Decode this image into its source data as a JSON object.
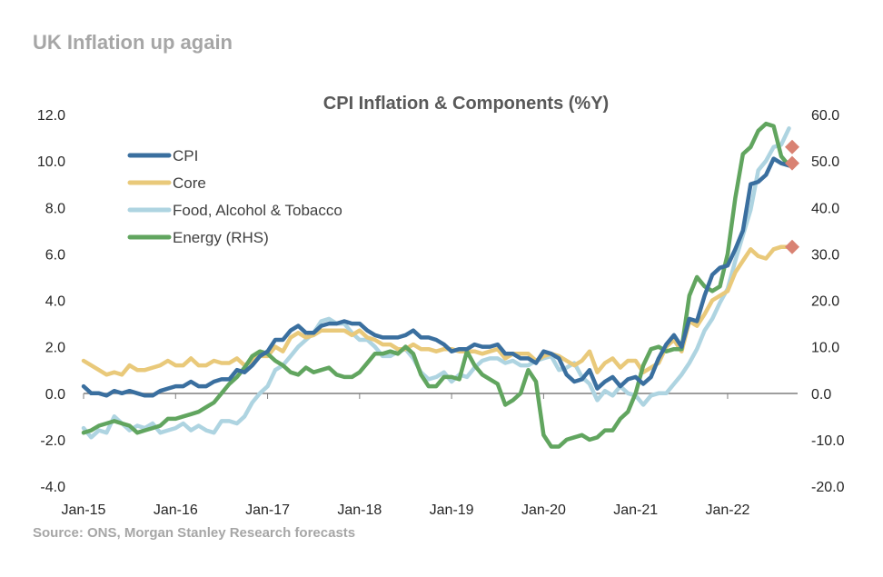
{
  "page": {
    "title": "UK Inflation up again",
    "source": "Source: ONS, Morgan Stanley Research forecasts"
  },
  "chart_data": {
    "type": "line",
    "title": "CPI Inflation & Components (%Y)",
    "x_start": "2015-01",
    "frequency": "monthly",
    "x_ticks": [
      "Jan-15",
      "Jan-16",
      "Jan-17",
      "Jan-18",
      "Jan-19",
      "Jan-20",
      "Jan-21",
      "Jan-22"
    ],
    "y_left": {
      "range": [
        -4,
        12
      ],
      "ticks": [
        "12.0",
        "10.0",
        "8.0",
        "6.0",
        "4.0",
        "2.0",
        "0.0",
        "-2.0",
        "-4.0"
      ]
    },
    "y_right": {
      "range": [
        -20,
        60
      ],
      "ticks": [
        "60.0",
        "50.0",
        "40.0",
        "30.0",
        "20.0",
        "10.0",
        "0.0",
        "-10.0",
        "-20.0"
      ]
    },
    "grid": false,
    "legend": "top-left",
    "series": [
      {
        "name": "CPI",
        "axis": "left",
        "color": "#3a6f9f",
        "values": [
          0.3,
          0.0,
          0.0,
          -0.1,
          0.1,
          0.0,
          0.1,
          0.0,
          -0.1,
          -0.1,
          0.1,
          0.2,
          0.3,
          0.3,
          0.5,
          0.3,
          0.3,
          0.5,
          0.6,
          0.6,
          1.0,
          0.9,
          1.2,
          1.6,
          1.8,
          2.3,
          2.3,
          2.7,
          2.9,
          2.6,
          2.6,
          2.9,
          3.0,
          3.0,
          3.1,
          3.0,
          3.0,
          2.7,
          2.5,
          2.4,
          2.4,
          2.4,
          2.5,
          2.7,
          2.4,
          2.4,
          2.3,
          2.1,
          1.8,
          1.9,
          1.9,
          2.1,
          2.0,
          2.0,
          2.1,
          1.7,
          1.7,
          1.5,
          1.5,
          1.3,
          1.8,
          1.7,
          1.5,
          0.8,
          0.5,
          0.6,
          1.0,
          0.2,
          0.5,
          0.7,
          0.3,
          0.6,
          0.7,
          0.4,
          0.7,
          1.5,
          2.1,
          2.5,
          2.0,
          3.2,
          3.1,
          4.2,
          5.1,
          5.4,
          5.5,
          6.2,
          7.0,
          9.0,
          9.1,
          9.4,
          10.1,
          9.9,
          9.8
        ]
      },
      {
        "name": "Core",
        "axis": "left",
        "color": "#e9c97a",
        "values": [
          1.4,
          1.2,
          1.0,
          0.8,
          0.9,
          0.8,
          1.2,
          1.0,
          1.0,
          1.1,
          1.2,
          1.4,
          1.2,
          1.2,
          1.5,
          1.2,
          1.2,
          1.4,
          1.3,
          1.3,
          1.5,
          1.2,
          1.4,
          1.6,
          1.6,
          2.0,
          1.8,
          2.4,
          2.6,
          2.4,
          2.5,
          2.7,
          2.7,
          2.7,
          2.7,
          2.5,
          2.7,
          2.4,
          2.3,
          2.1,
          2.1,
          1.9,
          1.9,
          2.1,
          1.9,
          1.9,
          1.8,
          1.9,
          1.9,
          1.8,
          1.8,
          1.8,
          1.7,
          1.8,
          1.9,
          1.5,
          1.7,
          1.7,
          1.7,
          1.4,
          1.6,
          1.7,
          1.6,
          1.4,
          1.2,
          1.4,
          1.8,
          0.9,
          1.3,
          1.5,
          1.1,
          1.4,
          1.4,
          0.9,
          1.1,
          1.3,
          2.0,
          2.3,
          1.8,
          3.1,
          2.9,
          3.4,
          4.0,
          4.2,
          4.4,
          5.2,
          5.7,
          6.2,
          5.9,
          5.8,
          6.2,
          6.3,
          6.3
        ]
      },
      {
        "name": "Food, Alcohol & Tobacco",
        "axis": "left",
        "color": "#aed4e1",
        "values": [
          -1.5,
          -1.9,
          -1.6,
          -1.7,
          -1.0,
          -1.3,
          -1.6,
          -1.4,
          -1.5,
          -1.3,
          -1.7,
          -1.6,
          -1.5,
          -1.3,
          -1.6,
          -1.4,
          -1.6,
          -1.7,
          -1.2,
          -1.2,
          -1.3,
          -1.0,
          -0.4,
          0.0,
          0.3,
          1.0,
          1.2,
          1.6,
          2.0,
          2.3,
          2.6,
          3.1,
          3.2,
          3.0,
          3.0,
          2.6,
          2.3,
          2.3,
          2.0,
          1.6,
          1.6,
          1.8,
          1.9,
          1.5,
          0.9,
          0.6,
          0.7,
          0.9,
          0.5,
          0.8,
          0.7,
          1.1,
          1.4,
          1.5,
          1.5,
          1.3,
          1.4,
          1.2,
          1.2,
          1.4,
          1.5,
          1.6,
          1.0,
          1.1,
          1.3,
          0.7,
          0.4,
          -0.3,
          0.1,
          -0.1,
          0.3,
          0.0,
          -0.1,
          -0.5,
          -0.1,
          0.0,
          0.0,
          0.4,
          0.8,
          1.3,
          1.9,
          2.7,
          3.2,
          3.9,
          4.5,
          5.7,
          6.8,
          7.9,
          9.6,
          10.0,
          10.6,
          10.7,
          11.4
        ]
      },
      {
        "name": "Energy (RHS)",
        "axis": "right",
        "color": "#61a55f",
        "values": [
          -8.5,
          -8.0,
          -7.0,
          -6.5,
          -6.0,
          -6.5,
          -7.0,
          -8.5,
          -8.0,
          -7.5,
          -7.0,
          -5.5,
          -5.5,
          -5.0,
          -4.5,
          -4.0,
          -3.0,
          -2.0,
          0.0,
          2.0,
          3.5,
          5.5,
          8.0,
          9.0,
          8.5,
          7.0,
          6.0,
          4.5,
          4.0,
          5.5,
          4.5,
          5.0,
          5.5,
          4.0,
          3.5,
          3.5,
          4.5,
          6.5,
          8.5,
          8.5,
          9.0,
          8.5,
          10.0,
          8.5,
          4.0,
          1.5,
          1.5,
          3.5,
          3.5,
          3.0,
          9.0,
          6.0,
          4.0,
          3.0,
          2.0,
          -2.5,
          -1.5,
          0.0,
          5.0,
          2.5,
          -9.0,
          -11.5,
          -11.5,
          -10.0,
          -9.5,
          -9.0,
          -10.0,
          -9.5,
          -8.0,
          -8.0,
          -5.5,
          -4.0,
          0.0,
          6.0,
          9.5,
          10.0,
          9.0,
          9.5,
          9.5,
          21.0,
          25.0,
          23.0,
          22.0,
          23.0,
          30.0,
          42.0,
          51.5,
          53.0,
          56.5,
          58.0,
          57.5,
          51.0,
          49.0
        ]
      }
    ],
    "forecasts": [
      {
        "series": "Energy (RHS)",
        "axis": "right",
        "value": 53.0,
        "color": "#d98273"
      },
      {
        "series": "CPI",
        "axis": "left",
        "value": 9.9,
        "color": "#d98273"
      },
      {
        "series": "Core",
        "axis": "left",
        "value": 6.3,
        "color": "#d98273"
      }
    ]
  }
}
